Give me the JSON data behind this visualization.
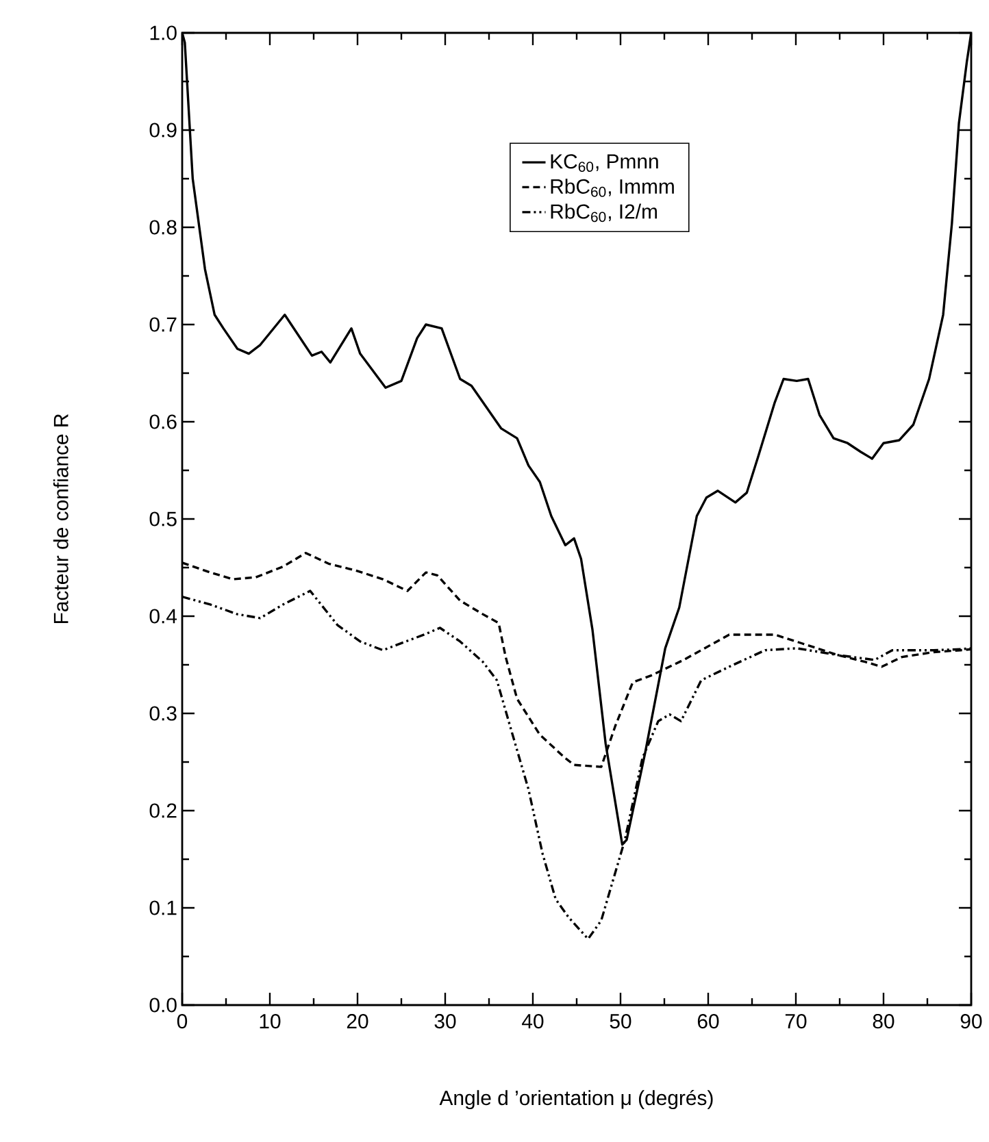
{
  "chart_data": {
    "type": "line",
    "xlabel": "Angle d ’orientation μ (degrés)",
    "ylabel": "Facteur de confiance R",
    "xlim": [
      0,
      90
    ],
    "ylim": [
      0,
      1
    ],
    "xticks": [
      0,
      10,
      20,
      30,
      40,
      50,
      60,
      70,
      80,
      90
    ],
    "yticks": [
      {
        "value": 0,
        "label": "0.0"
      },
      0.1,
      0.2,
      0.3,
      0.4,
      0.5,
      0.6,
      0.7,
      0.8,
      0.9,
      {
        "value": 1,
        "label": "1.0"
      }
    ],
    "grid": false,
    "legend": "top right",
    "marker": "none",
    "series": [
      {
        "name": "KC$_{60}$, Pmnn",
        "color": "#000000",
        "line_style": "solid",
        "x": [
          0,
          0.3,
          1.2,
          2.6,
          3.7,
          4.7,
          6.3,
          7.6,
          8.9,
          11.7,
          14.8,
          15.9,
          16.9,
          19.3,
          20.3,
          23.2,
          25.0,
          26.8,
          27.8,
          29.6,
          31.7,
          33.0,
          36.4,
          38.2,
          39.5,
          40.8,
          42.1,
          43.7,
          44.7,
          45.5,
          46.8,
          48.3,
          50.2,
          50.7,
          52.8,
          55.1,
          56.7,
          58.7,
          59.8,
          61.1,
          63.1,
          64.4,
          65.7,
          67.6,
          68.6,
          70.1,
          71.4,
          72.7,
          74.3,
          75.9,
          77.4,
          78.7,
          80.0,
          81.8,
          83.4,
          85.2,
          86.8,
          87.8,
          88.6,
          89.5,
          90
        ],
        "values": [
          1.0,
          0.99,
          0.85,
          0.757,
          0.71,
          0.696,
          0.675,
          0.67,
          0.679,
          0.71,
          0.668,
          0.672,
          0.661,
          0.696,
          0.67,
          0.635,
          0.642,
          0.686,
          0.7,
          0.696,
          0.644,
          0.637,
          0.593,
          0.583,
          0.555,
          0.538,
          0.503,
          0.473,
          0.48,
          0.459,
          0.386,
          0.269,
          0.165,
          0.17,
          0.259,
          0.367,
          0.409,
          0.503,
          0.522,
          0.529,
          0.517,
          0.527,
          0.564,
          0.62,
          0.644,
          0.642,
          0.644,
          0.607,
          0.583,
          0.578,
          0.569,
          0.562,
          0.578,
          0.581,
          0.597,
          0.644,
          0.71,
          0.804,
          0.907,
          0.97,
          1.0
        ]
      },
      {
        "name": "RbC$_{60}$, Immm",
        "color": "#000000",
        "line_style": "dashed",
        "x": [
          0,
          3.2,
          5.8,
          8.4,
          11.5,
          14.1,
          16.7,
          19.8,
          22.9,
          25.7,
          27.8,
          29.1,
          31.7,
          34.3,
          36.1,
          36.9,
          38.2,
          40.8,
          43.7,
          44.7,
          47.8,
          49.4,
          51.4,
          53.5,
          57.2,
          62.4,
          67.6,
          70.7,
          74.8,
          77.9,
          79.8,
          82.1,
          85.7,
          88.8,
          90
        ],
        "values": [
          0.455,
          0.445,
          0.438,
          0.44,
          0.451,
          0.465,
          0.454,
          0.447,
          0.438,
          0.426,
          0.445,
          0.442,
          0.416,
          0.402,
          0.393,
          0.358,
          0.315,
          0.278,
          0.254,
          0.247,
          0.245,
          0.287,
          0.332,
          0.339,
          0.355,
          0.381,
          0.381,
          0.372,
          0.36,
          0.353,
          0.348,
          0.358,
          0.363,
          0.365,
          0.366
        ]
      },
      {
        "name": "RbC$_{60}$, I2/m",
        "color": "#000000",
        "line_style": "dashdot",
        "x": [
          0,
          3.2,
          6.3,
          8.9,
          11.5,
          14.6,
          17.7,
          20.3,
          22.9,
          25.5,
          27.6,
          29.4,
          31.7,
          34.3,
          35.9,
          37.4,
          39.5,
          41.1,
          42.6,
          44.1,
          46.3,
          47.8,
          50.5,
          52.5,
          54.3,
          55.6,
          56.9,
          59.2,
          62.4,
          66.5,
          70.1,
          74.8,
          79.0,
          81.0,
          85.7,
          88.8,
          90
        ],
        "values": [
          0.42,
          0.412,
          0.402,
          0.398,
          0.412,
          0.426,
          0.391,
          0.374,
          0.365,
          0.374,
          0.381,
          0.388,
          0.374,
          0.353,
          0.334,
          0.287,
          0.222,
          0.156,
          0.109,
          0.09,
          0.068,
          0.087,
          0.17,
          0.254,
          0.292,
          0.299,
          0.292,
          0.334,
          0.348,
          0.365,
          0.367,
          0.36,
          0.355,
          0.365,
          0.365,
          0.366,
          0.367
        ]
      }
    ]
  }
}
